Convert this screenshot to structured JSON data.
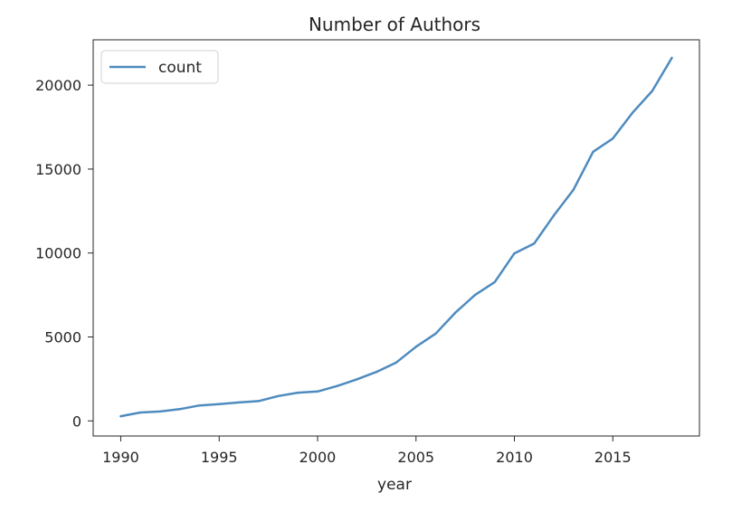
{
  "chart_data": {
    "type": "line",
    "title": "Number of Authors",
    "xlabel": "year",
    "ylabel": "",
    "xlim": [
      1988.6,
      2019.4
    ],
    "ylim": [
      -900,
      22700
    ],
    "xticks": [
      1990,
      1995,
      2000,
      2005,
      2010,
      2015
    ],
    "yticks": [
      0,
      5000,
      10000,
      15000,
      20000
    ],
    "grid": false,
    "legend_position": "top-left",
    "series": [
      {
        "name": "count",
        "color": "#4e8bbf",
        "x": [
          1990,
          1991,
          1992,
          1993,
          1994,
          1995,
          1996,
          1997,
          1998,
          1999,
          2000,
          2001,
          2002,
          2003,
          2004,
          2005,
          2006,
          2007,
          2008,
          2009,
          2010,
          2011,
          2012,
          2013,
          2014,
          2015,
          2016,
          2017,
          2018
        ],
        "y": [
          280,
          500,
          560,
          700,
          920,
          1000,
          1100,
          1180,
          1480,
          1680,
          1750,
          2080,
          2480,
          2920,
          3480,
          4420,
          5200,
          6450,
          7500,
          8270,
          9980,
          10560,
          12230,
          13770,
          16030,
          16820,
          18350,
          19650,
          21620
        ]
      }
    ]
  }
}
